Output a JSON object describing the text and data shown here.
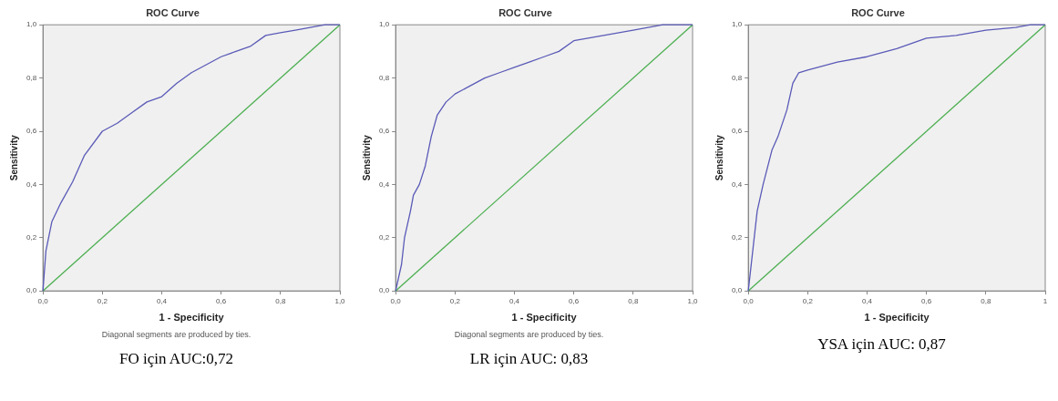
{
  "chart_data": [
    {
      "type": "line",
      "title": "ROC Curve",
      "xlabel": "1 - Specificity",
      "ylabel": "Sensitivity",
      "xlim": [
        0,
        1
      ],
      "ylim": [
        0,
        1
      ],
      "xticks": [
        {
          "value": 0,
          "label": "0,0"
        },
        {
          "value": 0.2,
          "label": "0,2"
        },
        {
          "value": 0.4,
          "label": "0,4"
        },
        {
          "value": 0.6,
          "label": "0,6"
        },
        {
          "value": 0.8,
          "label": "0,8"
        },
        {
          "value": 1,
          "label": "1,0"
        }
      ],
      "yticks": [
        {
          "value": 0,
          "label": "0,0"
        },
        {
          "value": 0.2,
          "label": "0,2"
        },
        {
          "value": 0.4,
          "label": "0,4"
        },
        {
          "value": 0.6,
          "label": "0,6"
        },
        {
          "value": 0.8,
          "label": "0,8"
        },
        {
          "value": 1,
          "label": "1,0"
        }
      ],
      "grid": false,
      "legend": false,
      "marker": "none",
      "line_style": "solid",
      "series": [
        {
          "color": "#5a5ab8",
          "x": [
            0,
            0.01,
            0.03,
            0.06,
            0.1,
            0.14,
            0.2,
            0.25,
            0.3,
            0.35,
            0.4,
            0.45,
            0.5,
            0.55,
            0.6,
            0.65,
            0.7,
            0.75,
            0.8,
            0.85,
            0.9,
            0.95,
            1
          ],
          "values": [
            0,
            0.15,
            0.26,
            0.33,
            0.41,
            0.51,
            0.6,
            0.63,
            0.67,
            0.71,
            0.73,
            0.78,
            0.82,
            0.85,
            0.88,
            0.9,
            0.92,
            0.96,
            0.97,
            0.98,
            0.99,
            1,
            1
          ]
        },
        {
          "color": "#4caf50",
          "x": [
            0,
            1
          ],
          "values": [
            0,
            1
          ]
        }
      ],
      "annotations": [
        "Diagonal segments are produced by ties.",
        "FO için AUC:0,72"
      ]
    },
    {
      "type": "line",
      "title": "ROC Curve",
      "xlabel": "1 - Specificity",
      "ylabel": "Sensitivity",
      "xlim": [
        0,
        1
      ],
      "ylim": [
        0,
        1
      ],
      "xticks": [
        {
          "value": 0,
          "label": "0,0"
        },
        {
          "value": 0.2,
          "label": "0,2"
        },
        {
          "value": 0.4,
          "label": "0,4"
        },
        {
          "value": 0.6,
          "label": "0,6"
        },
        {
          "value": 0.8,
          "label": "0,8"
        },
        {
          "value": 1,
          "label": "1,0"
        }
      ],
      "yticks": [
        {
          "value": 0,
          "label": "0,0"
        },
        {
          "value": 0.2,
          "label": "0,2"
        },
        {
          "value": 0.4,
          "label": "0,4"
        },
        {
          "value": 0.6,
          "label": "0,6"
        },
        {
          "value": 0.8,
          "label": "0,8"
        },
        {
          "value": 1,
          "label": "1,0"
        }
      ],
      "grid": false,
      "legend": false,
      "marker": "none",
      "line_style": "solid",
      "series": [
        {
          "color": "#5a5ab8",
          "x": [
            0,
            0.02,
            0.03,
            0.05,
            0.06,
            0.08,
            0.1,
            0.12,
            0.14,
            0.17,
            0.2,
            0.25,
            0.3,
            0.35,
            0.4,
            0.45,
            0.5,
            0.55,
            0.6,
            0.7,
            0.8,
            0.85,
            0.9,
            1
          ],
          "values": [
            0,
            0.1,
            0.2,
            0.3,
            0.36,
            0.4,
            0.47,
            0.58,
            0.66,
            0.71,
            0.74,
            0.77,
            0.8,
            0.82,
            0.84,
            0.86,
            0.88,
            0.9,
            0.94,
            0.96,
            0.98,
            0.99,
            1,
            1
          ]
        },
        {
          "color": "#4caf50",
          "x": [
            0,
            1
          ],
          "values": [
            0,
            1
          ]
        }
      ],
      "annotations": [
        "Diagonal segments are produced by ties.",
        "LR için AUC: 0,83"
      ]
    },
    {
      "type": "line",
      "title": "ROC Curve",
      "xlabel": "1 - Specificity",
      "ylabel": "Sensitivity",
      "xlim": [
        0,
        1
      ],
      "ylim": [
        0,
        1
      ],
      "xticks": [
        {
          "value": 0,
          "label": "0,0"
        },
        {
          "value": 0.2,
          "label": "0,2"
        },
        {
          "value": 0.4,
          "label": "0,4"
        },
        {
          "value": 0.6,
          "label": "0,6"
        },
        {
          "value": 0.8,
          "label": "0,8"
        },
        1
      ],
      "yticks": [
        {
          "value": 0,
          "label": "0,0"
        },
        {
          "value": 0.2,
          "label": "0,2"
        },
        {
          "value": 0.4,
          "label": "0,4"
        },
        {
          "value": 0.6,
          "label": "0,6"
        },
        {
          "value": 0.8,
          "label": "0,8"
        },
        {
          "value": 1,
          "label": "1,0"
        }
      ],
      "grid": false,
      "legend": false,
      "marker": "none",
      "line_style": "solid",
      "series": [
        {
          "color": "#5a5ab8",
          "x": [
            0,
            0.01,
            0.03,
            0.05,
            0.08,
            0.1,
            0.13,
            0.15,
            0.17,
            0.2,
            0.3,
            0.4,
            0.5,
            0.6,
            0.7,
            0.8,
            0.9,
            0.95,
            1
          ],
          "values": [
            0,
            0.1,
            0.3,
            0.4,
            0.53,
            0.58,
            0.68,
            0.78,
            0.82,
            0.83,
            0.86,
            0.88,
            0.91,
            0.95,
            0.96,
            0.98,
            0.99,
            1,
            1
          ]
        },
        {
          "color": "#4caf50",
          "x": [
            0,
            1
          ],
          "values": [
            0,
            1
          ]
        }
      ],
      "annotations": [
        "YSA için AUC: 0,87"
      ]
    }
  ]
}
